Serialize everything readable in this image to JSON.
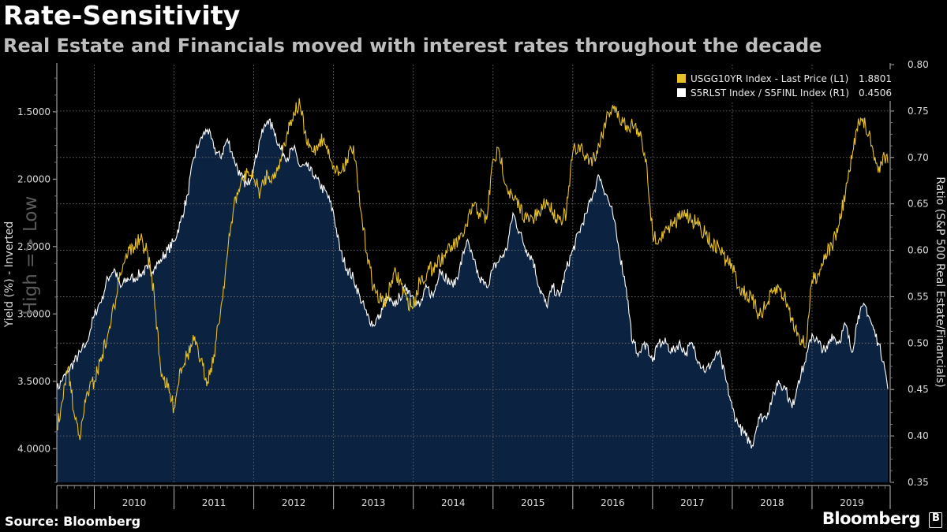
{
  "header": {
    "title": "Rate-Sensitivity",
    "subtitle": "Real Estate and Financials moved with interest rates throughout the decade"
  },
  "footer": {
    "source": "Source: Bloomberg",
    "brand": "Bloomberg",
    "brand_mark": "B"
  },
  "colors": {
    "background": "#000000",
    "area_fill": "#0b2240",
    "yield_line": "#e6c026",
    "ratio_line": "#ffffff",
    "grid": "#7a7a7a"
  },
  "chart_data": {
    "type": "line",
    "title": "Rate-Sensitivity",
    "subtitle": "Real Estate and Financials moved with interest rates throughout the decade",
    "xlabel": "",
    "x_ticks": [
      "2010",
      "2011",
      "2012",
      "2013",
      "2014",
      "2015",
      "2016",
      "2017",
      "2018",
      "2019"
    ],
    "x_range": [
      2009.53,
      2019.98
    ],
    "left_axis": {
      "label": "Yield (%) - Inverted",
      "watermark": "High => Low",
      "inverted": true,
      "range": [
        4.25,
        1.15
      ],
      "ticks": [
        "1.5000",
        "2.0000",
        "2.5000",
        "3.0000",
        "3.5000",
        "4.0000"
      ]
    },
    "right_axis": {
      "label": "Ratio (S&P 500 Real Estate/Financials)",
      "range": [
        0.35,
        0.8
      ],
      "ticks": [
        "0.80",
        "0.75",
        "0.70",
        "0.65",
        "0.60",
        "0.55",
        "0.50",
        "0.45",
        "0.40",
        "0.35"
      ]
    },
    "legend": {
      "position": "top-right",
      "items": [
        {
          "label": "USGG10YR Index - Last Price (L1)",
          "last": "1.8801",
          "color": "#e6c026"
        },
        {
          "label": "S5RLST Index / S5FINL Index (R1)",
          "last": "0.4506",
          "color": "#ffffff"
        }
      ]
    },
    "series": [
      {
        "name": "USGG10YR Index - Last Price (L1)",
        "axis": "left",
        "style": "line",
        "color": "#e6c026",
        "x": [
          2009.53,
          2009.6,
          2009.67,
          2009.75,
          2009.83,
          2009.9,
          2010.0,
          2010.1,
          2010.17,
          2010.25,
          2010.3,
          2010.4,
          2010.5,
          2010.58,
          2010.67,
          2010.75,
          2010.83,
          2010.92,
          2011.0,
          2011.08,
          2011.17,
          2011.25,
          2011.33,
          2011.42,
          2011.5,
          2011.58,
          2011.67,
          2011.75,
          2011.83,
          2011.92,
          2012.0,
          2012.08,
          2012.17,
          2012.25,
          2012.33,
          2012.42,
          2012.5,
          2012.58,
          2012.67,
          2012.75,
          2012.83,
          2012.92,
          2013.0,
          2013.08,
          2013.17,
          2013.25,
          2013.33,
          2013.42,
          2013.5,
          2013.58,
          2013.67,
          2013.75,
          2013.83,
          2013.92,
          2014.0,
          2014.08,
          2014.17,
          2014.25,
          2014.33,
          2014.42,
          2014.5,
          2014.58,
          2014.67,
          2014.75,
          2014.83,
          2014.92,
          2015.0,
          2015.08,
          2015.17,
          2015.25,
          2015.33,
          2015.42,
          2015.5,
          2015.58,
          2015.67,
          2015.75,
          2015.83,
          2015.92,
          2016.0,
          2016.08,
          2016.17,
          2016.25,
          2016.33,
          2016.42,
          2016.5,
          2016.58,
          2016.67,
          2016.75,
          2016.83,
          2016.92,
          2017.0,
          2017.08,
          2017.17,
          2017.25,
          2017.33,
          2017.42,
          2017.5,
          2017.58,
          2017.67,
          2017.75,
          2017.83,
          2017.92,
          2018.0,
          2018.08,
          2018.17,
          2018.25,
          2018.33,
          2018.42,
          2018.5,
          2018.58,
          2018.67,
          2018.75,
          2018.83,
          2018.92,
          2019.0,
          2019.08,
          2019.17,
          2019.25,
          2019.33,
          2019.42,
          2019.5,
          2019.58,
          2019.67,
          2019.75,
          2019.83,
          2019.9,
          2019.95
        ],
        "y": [
          3.85,
          3.65,
          3.4,
          3.75,
          3.9,
          3.6,
          3.5,
          3.3,
          3.15,
          2.95,
          2.75,
          2.55,
          2.5,
          2.45,
          2.55,
          2.85,
          3.4,
          3.55,
          3.7,
          3.4,
          3.3,
          3.2,
          3.35,
          3.5,
          3.3,
          3.0,
          2.55,
          2.2,
          2.05,
          1.95,
          2.0,
          2.1,
          1.95,
          2.0,
          1.85,
          1.65,
          1.5,
          1.45,
          1.75,
          1.8,
          1.7,
          1.75,
          1.9,
          1.95,
          1.85,
          1.75,
          2.2,
          2.55,
          2.8,
          2.9,
          2.9,
          2.7,
          2.75,
          2.9,
          2.95,
          2.75,
          2.7,
          2.65,
          2.6,
          2.55,
          2.5,
          2.45,
          2.35,
          2.2,
          2.25,
          2.3,
          1.85,
          1.8,
          2.05,
          2.15,
          2.2,
          2.3,
          2.3,
          2.25,
          2.15,
          2.25,
          2.3,
          2.25,
          1.8,
          1.75,
          1.85,
          1.85,
          1.75,
          1.55,
          1.45,
          1.55,
          1.6,
          1.6,
          1.65,
          1.85,
          2.4,
          2.45,
          2.35,
          2.35,
          2.3,
          2.25,
          2.3,
          2.35,
          2.4,
          2.5,
          2.5,
          2.6,
          2.65,
          2.8,
          2.85,
          2.9,
          3.0,
          2.95,
          2.85,
          2.8,
          2.9,
          3.05,
          3.15,
          3.25,
          2.75,
          2.7,
          2.55,
          2.5,
          2.35,
          2.1,
          1.85,
          1.55,
          1.6,
          1.75,
          1.95,
          1.8,
          1.88
        ]
      },
      {
        "name": "S5RLST Index / S5FINL Index (R1)",
        "axis": "right",
        "style": "area",
        "color": "#ffffff",
        "x": [
          2009.53,
          2009.6,
          2009.67,
          2009.75,
          2009.83,
          2009.9,
          2010.0,
          2010.1,
          2010.17,
          2010.25,
          2010.33,
          2010.42,
          2010.5,
          2010.58,
          2010.67,
          2010.75,
          2010.83,
          2010.92,
          2011.0,
          2011.08,
          2011.17,
          2011.25,
          2011.33,
          2011.42,
          2011.5,
          2011.58,
          2011.67,
          2011.75,
          2011.83,
          2011.92,
          2012.0,
          2012.08,
          2012.17,
          2012.25,
          2012.33,
          2012.42,
          2012.5,
          2012.58,
          2012.67,
          2012.75,
          2012.83,
          2012.92,
          2013.0,
          2013.08,
          2013.17,
          2013.25,
          2013.33,
          2013.42,
          2013.5,
          2013.58,
          2013.67,
          2013.75,
          2013.83,
          2013.92,
          2014.0,
          2014.08,
          2014.17,
          2014.25,
          2014.33,
          2014.42,
          2014.5,
          2014.58,
          2014.67,
          2014.75,
          2014.83,
          2014.92,
          2015.0,
          2015.08,
          2015.17,
          2015.25,
          2015.33,
          2015.42,
          2015.5,
          2015.58,
          2015.67,
          2015.75,
          2015.83,
          2015.92,
          2016.0,
          2016.08,
          2016.17,
          2016.25,
          2016.33,
          2016.42,
          2016.5,
          2016.58,
          2016.67,
          2016.75,
          2016.83,
          2016.92,
          2017.0,
          2017.08,
          2017.17,
          2017.25,
          2017.33,
          2017.42,
          2017.5,
          2017.58,
          2017.67,
          2017.75,
          2017.83,
          2017.92,
          2018.0,
          2018.08,
          2018.17,
          2018.25,
          2018.33,
          2018.42,
          2018.5,
          2018.58,
          2018.67,
          2018.75,
          2018.83,
          2018.92,
          2019.0,
          2019.08,
          2019.17,
          2019.25,
          2019.33,
          2019.42,
          2019.5,
          2019.58,
          2019.67,
          2019.75,
          2019.83,
          2019.9,
          2019.95
        ],
        "y": [
          0.45,
          0.46,
          0.47,
          0.48,
          0.49,
          0.5,
          0.53,
          0.55,
          0.57,
          0.58,
          0.56,
          0.57,
          0.57,
          0.575,
          0.58,
          0.58,
          0.59,
          0.6,
          0.61,
          0.63,
          0.66,
          0.7,
          0.72,
          0.73,
          0.71,
          0.7,
          0.72,
          0.7,
          0.68,
          0.67,
          0.69,
          0.72,
          0.74,
          0.73,
          0.71,
          0.7,
          0.71,
          0.69,
          0.69,
          0.68,
          0.67,
          0.66,
          0.64,
          0.6,
          0.58,
          0.57,
          0.55,
          0.53,
          0.52,
          0.53,
          0.55,
          0.54,
          0.55,
          0.56,
          0.55,
          0.54,
          0.56,
          0.55,
          0.58,
          0.57,
          0.56,
          0.58,
          0.61,
          0.59,
          0.57,
          0.56,
          0.58,
          0.59,
          0.6,
          0.64,
          0.62,
          0.6,
          0.59,
          0.56,
          0.54,
          0.56,
          0.55,
          0.58,
          0.6,
          0.62,
          0.64,
          0.66,
          0.68,
          0.66,
          0.64,
          0.6,
          0.56,
          0.5,
          0.49,
          0.5,
          0.48,
          0.5,
          0.5,
          0.49,
          0.5,
          0.49,
          0.5,
          0.48,
          0.47,
          0.48,
          0.49,
          0.46,
          0.43,
          0.41,
          0.4,
          0.39,
          0.42,
          0.42,
          0.44,
          0.46,
          0.45,
          0.43,
          0.46,
          0.48,
          0.51,
          0.5,
          0.49,
          0.51,
          0.5,
          0.52,
          0.49,
          0.53,
          0.54,
          0.52,
          0.5,
          0.48,
          0.4506
        ]
      }
    ]
  }
}
